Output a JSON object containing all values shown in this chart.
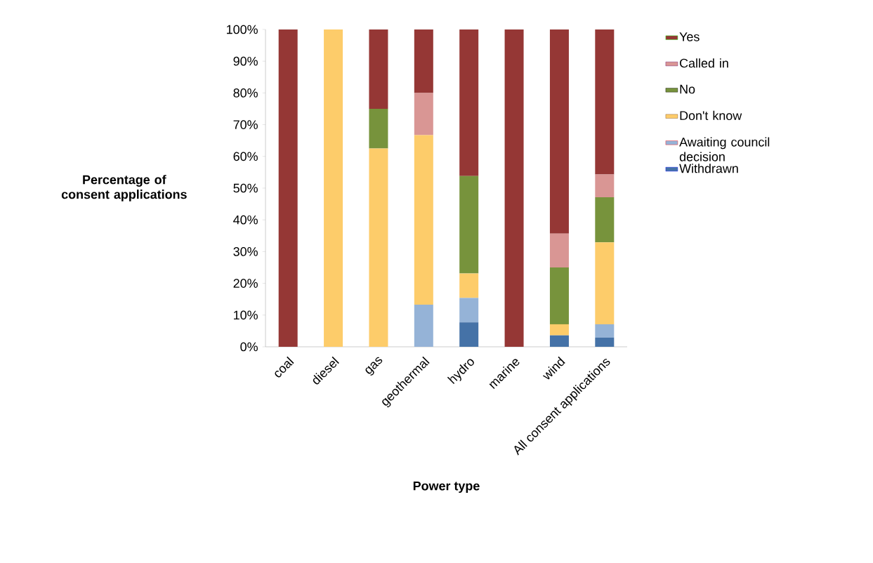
{
  "chart_data": {
    "type": "bar",
    "stacked": true,
    "xlabel": "Power type",
    "ylabel": "Percentage of consent applications",
    "categories": [
      "coal",
      "diesel",
      "gas",
      "geothermal",
      "hydro",
      "marine",
      "wind",
      "All consent applications"
    ],
    "series": [
      {
        "name": "Withdrawn",
        "color": "#4572a7",
        "values": [
          0,
          0,
          0,
          0,
          7.7,
          0,
          3.6,
          2.9
        ]
      },
      {
        "name": "Awaiting council decision",
        "color": "#95b3d7",
        "values": [
          0,
          0,
          0,
          13.3,
          7.7,
          0,
          0,
          4.2
        ]
      },
      {
        "name": "Don't know",
        "color": "#fdcc6a",
        "values": [
          0,
          100,
          62.5,
          53.4,
          7.7,
          0,
          3.5,
          25.8
        ]
      },
      {
        "name": "No",
        "color": "#77933c",
        "values": [
          0,
          0,
          12.5,
          0,
          30.7,
          0,
          17.9,
          14.2
        ]
      },
      {
        "name": "Called in",
        "color": "#d99694",
        "values": [
          0,
          0,
          0,
          13.3,
          0,
          0,
          10.7,
          7.2
        ]
      },
      {
        "name": "Yes",
        "color": "#953735",
        "values": [
          100,
          0,
          25,
          20,
          46.2,
          100,
          64.3,
          45.7
        ]
      }
    ],
    "ylim": [
      0,
      100
    ],
    "yticks": [
      {
        "value": 0,
        "label": "0%"
      },
      {
        "value": 10,
        "label": "10%"
      },
      {
        "value": 20,
        "label": "20%"
      },
      {
        "value": 30,
        "label": "30%"
      },
      {
        "value": 40,
        "label": "40%"
      },
      {
        "value": 50,
        "label": "50%"
      },
      {
        "value": 60,
        "label": "60%"
      },
      {
        "value": 70,
        "label": "70%"
      },
      {
        "value": 80,
        "label": "80%"
      },
      {
        "value": 90,
        "label": "90%"
      },
      {
        "value": 100,
        "label": "100%"
      }
    ],
    "grid": false,
    "legend": "right"
  }
}
